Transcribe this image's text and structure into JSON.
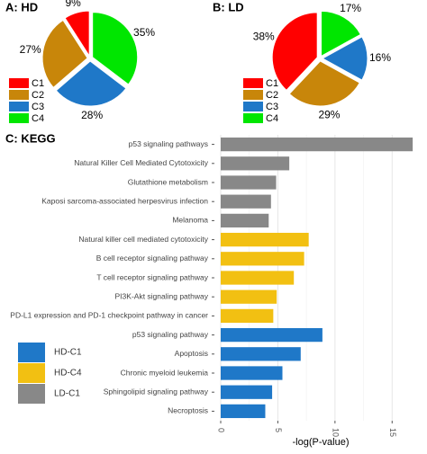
{
  "chart_data": [
    {
      "type": "pie",
      "title": "A: HD",
      "categories": [
        "C1",
        "C2",
        "C3",
        "C4"
      ],
      "values": [
        9,
        27,
        28,
        35
      ],
      "value_labels": [
        "9%",
        "27%",
        "28%",
        "35%"
      ],
      "colors": [
        "#ff0000",
        "#c8860a",
        "#1f78c8",
        "#00e600"
      ]
    },
    {
      "type": "pie",
      "title": "B: LD",
      "categories": [
        "C1",
        "C2",
        "C3",
        "C4"
      ],
      "values": [
        38,
        29,
        16,
        17
      ],
      "value_labels": [
        "38%",
        "29%",
        "16%",
        "17%"
      ],
      "colors": [
        "#ff0000",
        "#c8860a",
        "#1f78c8",
        "#00e600"
      ]
    },
    {
      "type": "hbar",
      "title": "C: KEGG",
      "x_label": "-log(P-value)",
      "categories": [
        "p53 signaling pathways",
        "Natural Killer Cell Mediated Cytotoxicity",
        "Glutathione metabolism",
        "Kaposi sarcoma-associated herpesvirus infection",
        "Melanoma",
        "Natural killer cell mediated cytotoxicity",
        "B cell receptor signaling pathway",
        "T cell receptor signaling pathway",
        "PI3K-Akt signaling pathway",
        "PD-L1 expression and PD-1 checkpoint pathway in cancer",
        "p53 signaling pathway",
        "Apoptosis",
        "Chronic myeloid leukemia",
        "Sphingolipid signaling pathway",
        "Necroptosis"
      ],
      "series": [
        {
          "name": "HD-C1",
          "color": "#1f78c8",
          "values": [
            null,
            null,
            null,
            null,
            null,
            null,
            null,
            null,
            null,
            null,
            8.9,
            7.0,
            5.4,
            4.5,
            3.9
          ]
        },
        {
          "name": "HD-C4",
          "color": "#f2c012",
          "values": [
            null,
            null,
            null,
            null,
            null,
            7.7,
            7.3,
            6.4,
            4.9,
            4.6,
            null,
            null,
            null,
            null,
            null
          ]
        },
        {
          "name": "LD-C1",
          "color": "#888888",
          "values": [
            16.8,
            6.0,
            4.85,
            4.4,
            4.2,
            null,
            null,
            null,
            null,
            null,
            null,
            null,
            null,
            null,
            null
          ]
        }
      ],
      "xlim": [
        0,
        17.5
      ],
      "xticks": [
        0,
        5,
        10,
        15
      ],
      "grid": true
    }
  ]
}
